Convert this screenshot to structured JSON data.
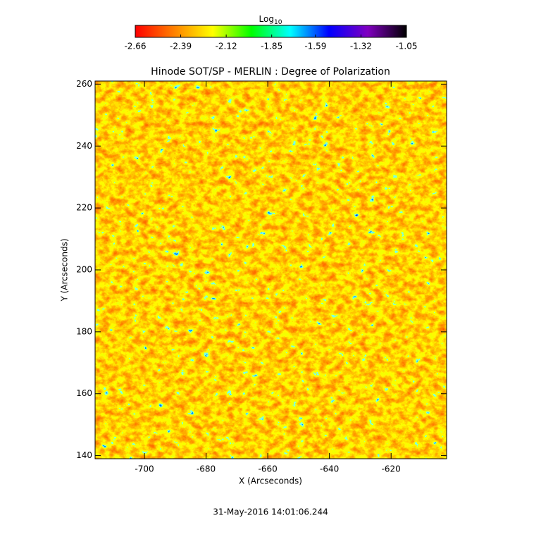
{
  "chart_data": {
    "type": "heatmap",
    "title": "Hinode SOT/SP - MERLIN : Degree of Polarization",
    "xlabel": "X (Arcseconds)",
    "ylabel": "Y (Arcseconds)",
    "xlim": [
      -716,
      -602
    ],
    "xticks": [
      -700,
      -680,
      -660,
      -640,
      -620
    ],
    "ylim": [
      139,
      261
    ],
    "yticks": [
      140,
      160,
      180,
      200,
      220,
      240,
      260
    ],
    "colorbar": {
      "label": "Log",
      "label_sub": "10",
      "lim": [
        -2.66,
        -1.05
      ],
      "ticks": [
        -2.66,
        -2.39,
        -2.12,
        -1.85,
        -1.59,
        -1.32,
        -1.05
      ],
      "colors": [
        "#ff0000",
        "#ff8000",
        "#ffff00",
        "#00ff00",
        "#00ffff",
        "#0000ff",
        "#8000c0",
        "#000000"
      ]
    },
    "footer": "31-May-2016 14:01:06.244"
  }
}
